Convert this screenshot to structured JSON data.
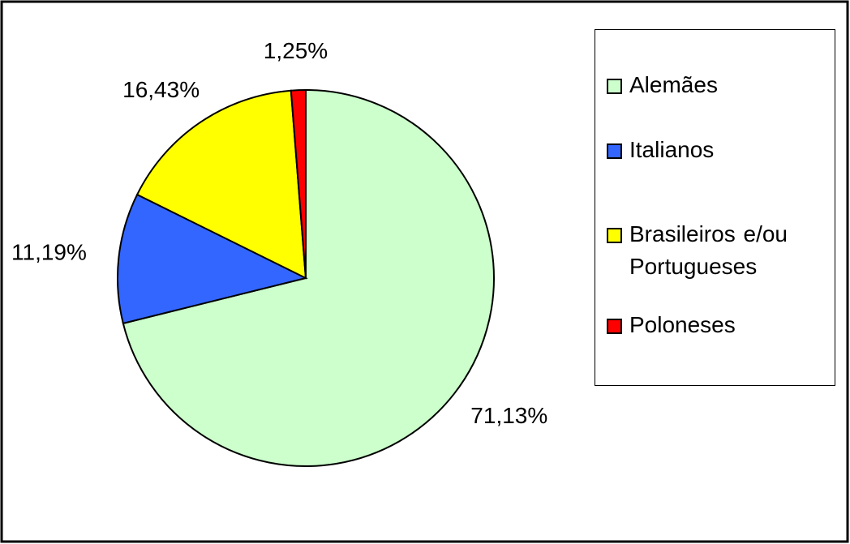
{
  "chart_data": {
    "type": "pie",
    "categories": [
      "Alemães",
      "Italianos",
      "Brasileiros e/ou Portugueses",
      "Poloneses"
    ],
    "values": [
      71.13,
      11.19,
      16.43,
      1.25
    ],
    "value_labels": [
      "71,13%",
      "11,19%",
      "16,43%",
      "1,25%"
    ],
    "colors": [
      "#ccffcc",
      "#3366ff",
      "#ffff00",
      "#ff0000"
    ],
    "legend": "right"
  }
}
